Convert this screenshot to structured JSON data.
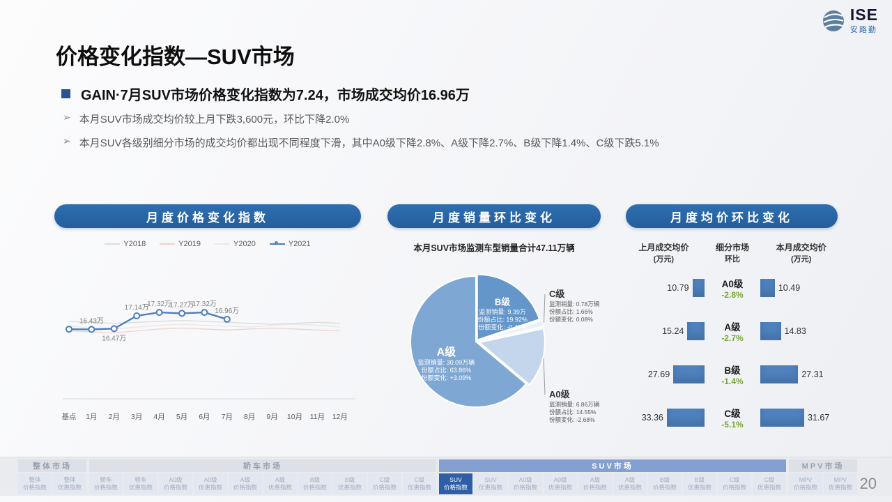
{
  "logo": {
    "name": "ISE",
    "subtitle": "安路勤"
  },
  "title": "价格变化指数—SUV市场",
  "page": {
    "number": "20"
  },
  "summary": {
    "marker": "➢",
    "headline": "GAIN·7月SUV市场价格变化指数为7.24，市场成交均价16.96万",
    "bullets": [
      "本月SUV市场成交均价较上月下跌3,600元，环比下降2.0%",
      "本月SUV各级别细分市场的成交均价都出现不同程度下滑，其中A0级下降2.8%、A级下降2.7%、B级下降1.4%、C级下跌5.1%"
    ]
  },
  "chart_data": [
    {
      "type": "line",
      "title": "月度价格变化指数",
      "x": [
        "基点",
        "1月",
        "2月",
        "3月",
        "4月",
        "5月",
        "6月",
        "7月",
        "8月",
        "9月",
        "10月",
        "11月",
        "12月"
      ],
      "ylim": [
        12.8,
        19.0
      ],
      "grid": false,
      "legend_position": "top",
      "series": [
        {
          "name": "Y2018",
          "color": "#dcdcdc",
          "approx": true,
          "values": [
            16.85,
            16.8,
            16.75,
            16.8,
            16.85,
            16.9,
            16.85,
            16.8,
            16.75,
            16.7,
            16.75,
            16.8,
            16.75
          ]
        },
        {
          "name": "Y2019",
          "color": "#f0d2d0",
          "approx": true,
          "values": [
            16.35,
            16.3,
            16.25,
            16.35,
            16.45,
            16.5,
            16.45,
            16.4,
            16.45,
            16.5,
            16.45,
            16.4,
            16.35
          ]
        },
        {
          "name": "Y2020",
          "color": "#e8e8e8",
          "approx": true,
          "values": [
            16.6,
            16.5,
            16.45,
            16.55,
            16.65,
            16.7,
            16.65,
            16.6,
            16.55,
            16.65,
            16.7,
            16.65,
            16.55
          ]
        },
        {
          "name": "Y2021",
          "color": "#4a7ebb",
          "markers": true,
          "values": [
            16.44,
            16.43,
            16.47,
            17.14,
            17.32,
            17.27,
            17.32,
            16.96
          ]
        }
      ],
      "point_labels": [
        null,
        {
          "text": "16.43万",
          "pos": "above"
        },
        {
          "text": "16.47万",
          "pos": "below"
        },
        {
          "text": "17.14万",
          "pos": "above"
        },
        {
          "text": "17.32万",
          "pos": "above"
        },
        {
          "text": "17.27万",
          "pos": "above"
        },
        {
          "text": "17.32万",
          "pos": "above"
        },
        {
          "text": "16.96万",
          "pos": "above"
        }
      ]
    },
    {
      "type": "pie",
      "title": "月度销量环比变化",
      "subtitle": "本月SUV市场监测车型销量合计47.11万辆",
      "fields": {
        "volume": "监测销量:",
        "share": "份额占比:",
        "change": "份额变化:"
      },
      "slices": [
        {
          "name": "B级",
          "value": 19.92,
          "color": "#6496c9",
          "volume": "9.39万",
          "share": "19.92%",
          "change": "-0.49%",
          "label_inside": true,
          "label_r": 0.66,
          "name_size": 13,
          "explode": 3
        },
        {
          "name": "C级",
          "value": 1.66,
          "color": "#ebf1f8",
          "volume": "0.78万辆",
          "share": "1.66%",
          "change": "0.08%",
          "label_inside": false,
          "explode": 6
        },
        {
          "name": "A0级",
          "value": 14.55,
          "color": "#c3d6eb",
          "volume": "6.86万辆",
          "share": "14.55%",
          "change": "-2.68%",
          "label_inside": false,
          "explode": 5
        },
        {
          "name": "A级",
          "value": 63.86,
          "color": "#7fa7d3",
          "volume": "30.09万辆",
          "share": "63.86%",
          "change": "+3.09%",
          "label_inside": true,
          "label_r": 0.5,
          "name_size": 16,
          "explode": 0
        }
      ]
    },
    {
      "type": "table",
      "title": "月度均价环比变化",
      "bar_color": "#4e81bd",
      "change_color": "#76a832",
      "columns": [
        {
          "line1": "上月成交均价",
          "line2": "(万元)"
        },
        {
          "line1": "细分市场",
          "line2": "环比"
        },
        {
          "line1": "本月成交均价",
          "line2": "(万元)"
        }
      ],
      "rows": [
        {
          "prev": 10.79,
          "segment": "A0级",
          "change": "-2.8%",
          "curr": 10.49
        },
        {
          "prev": 15.24,
          "segment": "A级",
          "change": "-2.7%",
          "curr": 14.83
        },
        {
          "prev": 27.69,
          "segment": "B级",
          "change": "-1.4%",
          "curr": 27.31
        },
        {
          "prev": 33.36,
          "segment": "C级",
          "change": "-5.1%",
          "curr": 31.67
        }
      ]
    }
  ],
  "bottom_nav": {
    "groups": [
      {
        "label": "整体市场",
        "active": false,
        "items": [
          {
            "line1": "整体",
            "line2": "价格指数"
          },
          {
            "line1": "整体",
            "line2": "优惠指数"
          }
        ]
      },
      {
        "label": "轿车市场",
        "active": false,
        "items": [
          {
            "line1": "轿车",
            "line2": "价格指数"
          },
          {
            "line1": "轿车",
            "line2": "优惠指数"
          },
          {
            "line1": "A0级",
            "line2": "价格指数"
          },
          {
            "line1": "A0级",
            "line2": "优惠指数"
          },
          {
            "line1": "A级",
            "line2": "价格指数"
          },
          {
            "line1": "A级",
            "line2": "优惠指数"
          },
          {
            "line1": "B级",
            "line2": "价格指数"
          },
          {
            "line1": "B级",
            "line2": "优惠指数"
          },
          {
            "line1": "C级",
            "line2": "价格指数"
          },
          {
            "line1": "C级",
            "line2": "优惠指数"
          }
        ]
      },
      {
        "label": "SUV市场",
        "active": true,
        "items": [
          {
            "line1": "SUV",
            "line2": "价格指数",
            "active": true
          },
          {
            "line1": "SUV",
            "line2": "优惠指数"
          },
          {
            "line1": "A0级",
            "line2": "价格指数"
          },
          {
            "line1": "A0级",
            "line2": "优惠指数"
          },
          {
            "line1": "A级",
            "line2": "价格指数"
          },
          {
            "line1": "A级",
            "line2": "优惠指数"
          },
          {
            "line1": "B级",
            "line2": "价格指数"
          },
          {
            "line1": "B级",
            "line2": "优惠指数"
          },
          {
            "line1": "C级",
            "line2": "价格指数"
          },
          {
            "line1": "C级",
            "line2": "优惠指数"
          }
        ]
      },
      {
        "label": "MPV市场",
        "active": false,
        "items": [
          {
            "line1": "MPV",
            "line2": "价格指数"
          },
          {
            "line1": "MPV",
            "line2": "优惠指数"
          }
        ]
      }
    ]
  }
}
